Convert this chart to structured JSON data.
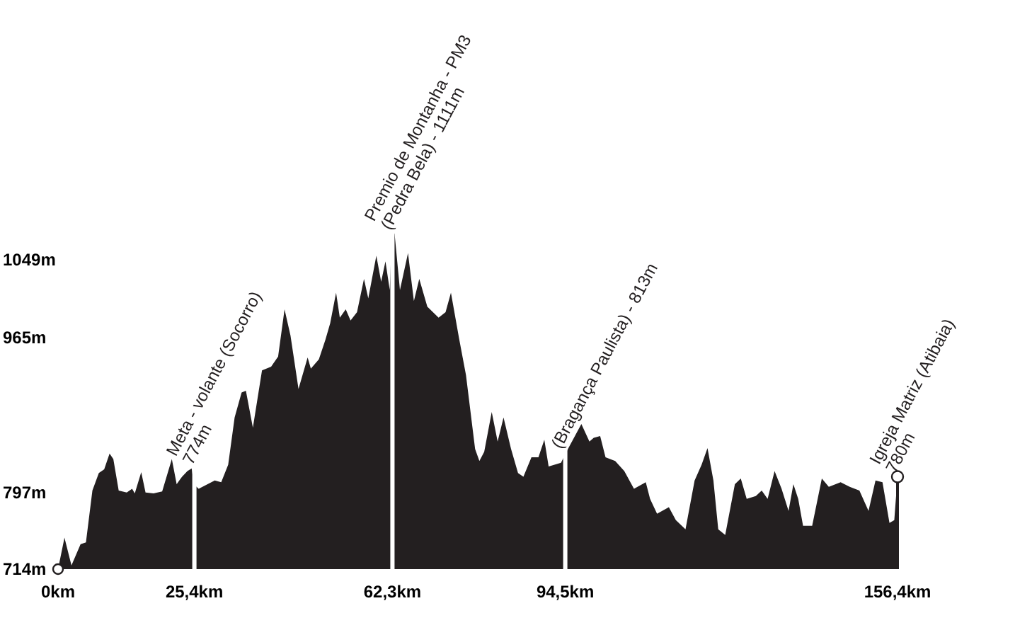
{
  "chart_data": {
    "type": "area",
    "x": [
      0,
      1.2,
      2.5,
      4.2,
      5.2,
      6.4,
      7.6,
      8.6,
      9.6,
      10.3,
      11.3,
      12.8,
      13.8,
      14.3,
      15.5,
      16.3,
      17.8,
      19.4,
      21.2,
      22.1,
      23.1,
      24.1,
      24.9,
      25.3,
      26.2,
      29.2,
      30.4,
      31.7,
      32.9,
      34.2,
      35.0,
      36.3,
      38.0,
      39.7,
      41.0,
      42.2,
      43.3,
      44.8,
      46.5,
      47.1,
      48.6,
      49.8,
      50.7,
      51.8,
      52.5,
      53.6,
      54.5,
      55.7,
      57.0,
      57.8,
      59.3,
      60.2,
      61.0,
      61.8,
      62.2,
      62.7,
      63.7,
      65.2,
      66.3,
      67.3,
      68.8,
      70.9,
      72.2,
      73.2,
      74.7,
      76.0,
      77.7,
      78.5,
      79.4,
      80.8,
      81.9,
      83.0,
      84.4,
      85.7,
      86.7,
      88.2,
      89.5,
      90.6,
      91.4,
      93.7,
      95.0,
      97.5,
      99.0,
      99.8,
      101.0,
      102.0,
      103.8,
      105.5,
      107.3,
      109.5,
      110.3,
      111.6,
      113.8,
      115.1,
      116.9,
      118.6,
      119.9,
      121.0,
      122.1,
      123.0,
      124.3,
      126.1,
      127.2,
      128.3,
      130.0,
      131.1,
      132.2,
      133.5,
      134.8,
      136.1,
      137.0,
      137.9,
      138.8,
      140.5,
      142.3,
      143.6,
      145.8,
      147.5,
      149.3,
      151.0,
      152.3,
      153.6,
      154.9,
      155.8,
      156.4
    ],
    "series": [
      {
        "color": "#231f20",
        "values": [
          714,
          748,
          718,
          741,
          743,
          799,
          818,
          822,
          839,
          833,
          799,
          797,
          801,
          796,
          819,
          797,
          796,
          798,
          833,
          806,
          814,
          820,
          823,
          806,
          801,
          810,
          808,
          827,
          878,
          905,
          907,
          867,
          929,
          933,
          944,
          995,
          967,
          909,
          943,
          931,
          941,
          962,
          980,
          1013,
          986,
          995,
          983,
          992,
          1028,
          1007,
          1053,
          1025,
          1047,
          1016,
          1077,
          1077,
          1016,
          1056,
          1004,
          1028,
          998,
          986,
          992,
          1013,
          964,
          924,
          844,
          831,
          841,
          884,
          852,
          878,
          844,
          818,
          814,
          835,
          835,
          854,
          825,
          829,
          844,
          871,
          852,
          856,
          858,
          835,
          831,
          820,
          801,
          808,
          790,
          774,
          781,
          767,
          757,
          810,
          827,
          845,
          810,
          757,
          751,
          806,
          812,
          790,
          793,
          799,
          790,
          820,
          801,
          777,
          806,
          790,
          761,
          761,
          812,
          803,
          808,
          803,
          799,
          777,
          810,
          808,
          764,
          767,
          814
        ]
      }
    ],
    "xlim": [
      0,
      156.4
    ],
    "ylim": [
      714,
      1100
    ],
    "xticks": [
      {
        "value": 0,
        "label": "0km"
      },
      {
        "value": 25.4,
        "label": "25,4km"
      },
      {
        "value": 62.3,
        "label": "62,3km"
      },
      {
        "value": 94.5,
        "label": "94,5km"
      },
      {
        "value": 156.4,
        "label": "156,4km"
      }
    ],
    "yticks": [
      {
        "value": 714,
        "label": "714m"
      },
      {
        "value": 797,
        "label": "797m"
      },
      {
        "value": 965,
        "label": "965m"
      },
      {
        "value": 1049,
        "label": "1049m"
      }
    ],
    "ref_lines": [
      {
        "axis": "x",
        "value": 25.4,
        "color": "#ffffff"
      },
      {
        "axis": "x",
        "value": 62.3,
        "color": "#ffffff"
      },
      {
        "axis": "x",
        "value": 94.5,
        "color": "#ffffff"
      }
    ],
    "annotations": [
      {
        "text": "Meta - volante (Socorro)\n774m",
        "x": 25.4,
        "y": 823
      },
      {
        "text": "Premio de Montanha - PM3\n(Pedra Bela) - 1111m",
        "x": 62.3,
        "y": 1077
      },
      {
        "text": "(Bragança Paulista) - 813m",
        "x": 94.5,
        "y": 831
      },
      {
        "text": "Igreja Matriz (Atibaia)\n780m",
        "x": 156.4,
        "y": 814
      }
    ],
    "grid": false
  }
}
